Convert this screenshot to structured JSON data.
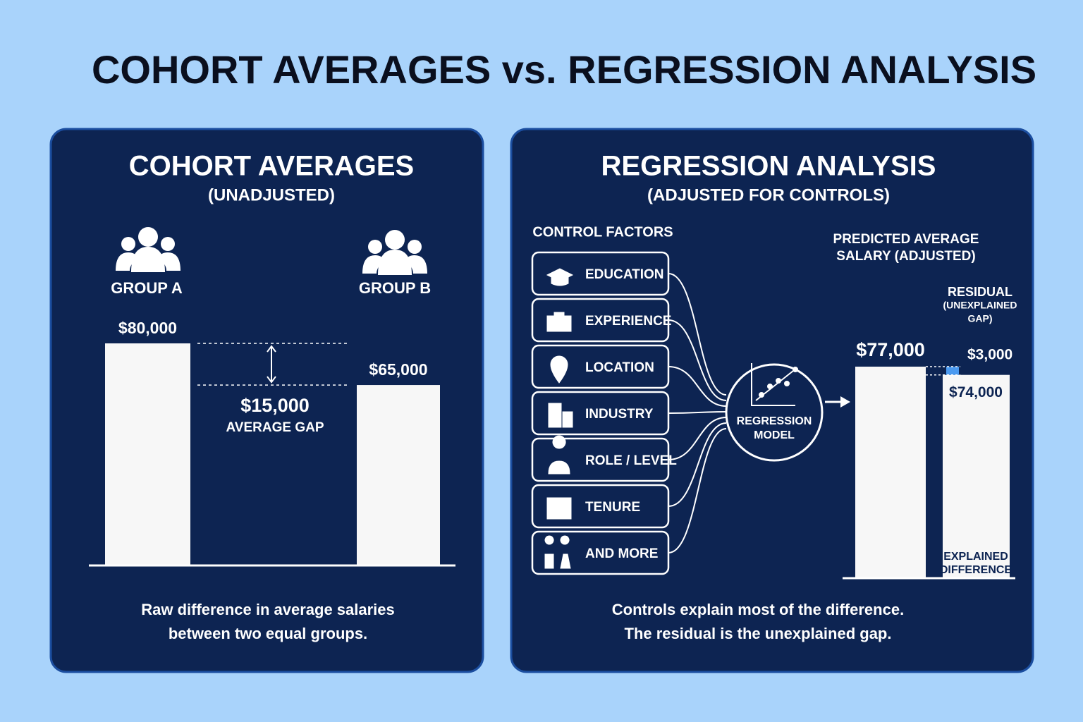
{
  "title": "COHORT AVERAGES vs. REGRESSION ANALYSIS",
  "left_panel": {
    "title": "COHORT AVERAGES",
    "subtitle": "(UNADJUSTED)",
    "groups": [
      {
        "name": "GROUP A",
        "value": 80000,
        "value_label": "$80,000"
      },
      {
        "name": "GROUP B",
        "value": 65000,
        "value_label": "$65,000"
      }
    ],
    "gap": {
      "value": 15000,
      "value_label": "$15,000",
      "label": "AVERAGE GAP"
    },
    "caption": [
      "Raw difference in average salaries",
      "between two equal groups."
    ]
  },
  "right_panel": {
    "title": "REGRESSION ANALYSIS",
    "subtitle": "(ADJUSTED FOR CONTROLS)",
    "factors_title": "CONTROL FACTORS",
    "factors": [
      "EDUCATION",
      "EXPERIENCE",
      "LOCATION",
      "INDUSTRY",
      "ROLE / LEVEL",
      "TENURE",
      "AND MORE"
    ],
    "model_label": [
      "REGRESSION",
      "MODEL"
    ],
    "predicted_title": [
      "PREDICTED AVERAGE",
      "SALARY (ADJUSTED)"
    ],
    "predicted": {
      "value": 77000,
      "value_label": "$77,000"
    },
    "residual": {
      "title": [
        "RESIDUAL",
        "(UNEXPLAINED",
        "GAP)"
      ],
      "value": 3000,
      "value_label": "$3,000"
    },
    "explained": {
      "value": 74000,
      "value_label": "$74,000",
      "label": [
        "EXPLAINED",
        "DIFFERENCE"
      ]
    },
    "caption": [
      "Controls explain most of the difference.",
      "The residual is the unexplained gap."
    ]
  }
}
